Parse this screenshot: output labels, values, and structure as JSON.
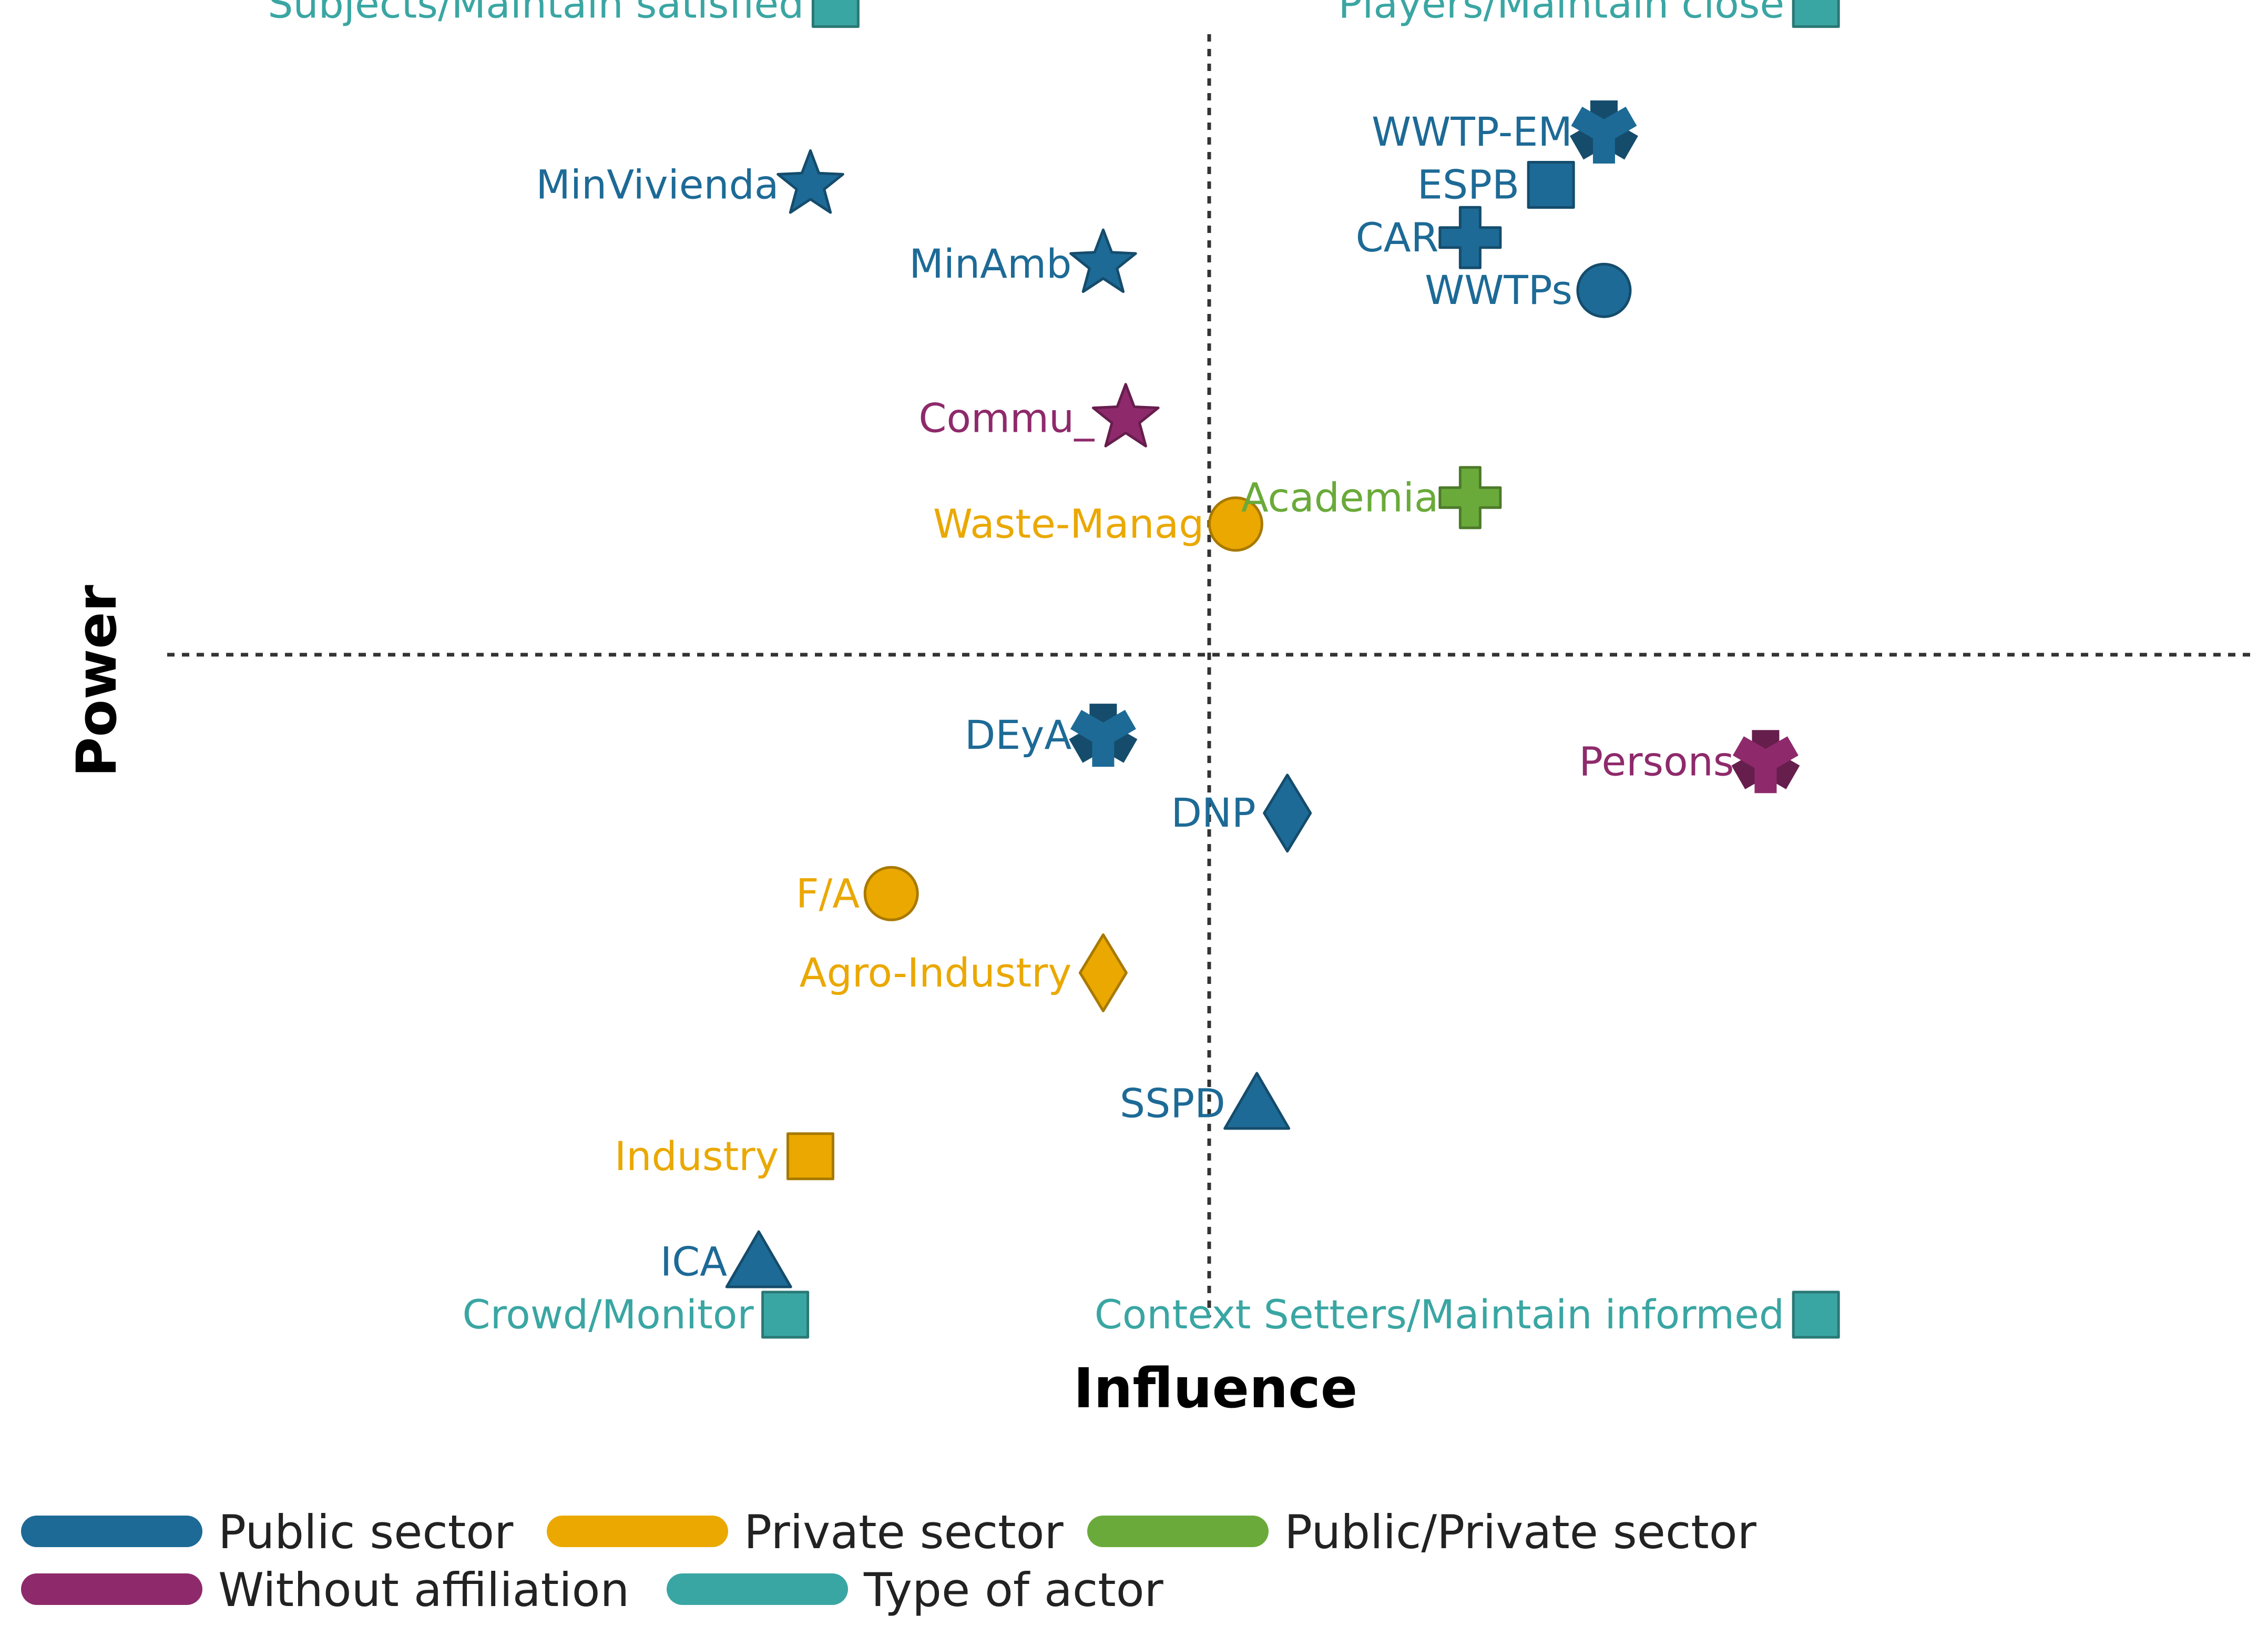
{
  "colors": {
    "public": "#1d6a96",
    "private": "#eaa800",
    "public_private": "#6aaa3a",
    "without": "#8e2a6b",
    "type": "#3aa6a3"
  },
  "chart_data": {
    "type": "scatter",
    "title": "",
    "xlabel": "Influence",
    "ylabel": "Power",
    "xlim": [
      0,
      1
    ],
    "ylim": [
      0,
      1
    ],
    "divider": {
      "x": 0.5,
      "y": 0.5
    },
    "grid": false,
    "legend_position": "bottom-left",
    "legend": [
      {
        "label": "Public sector",
        "color": "#1d6a96"
      },
      {
        "label": "Private sector",
        "color": "#eaa800"
      },
      {
        "label": "Public/Private sector",
        "color": "#6aaa3a"
      },
      {
        "label": "Without affiliation",
        "color": "#8e2a6b"
      },
      {
        "label": "Type of actor",
        "color": "#3aa6a3"
      }
    ],
    "series": [
      {
        "name": "Public sector",
        "color": "#1d6a96",
        "points": [
          {
            "label": "MinVivienda",
            "x": 0.199,
            "y": 0.856,
            "marker": "star"
          },
          {
            "label": "MinAmb",
            "x": 0.42,
            "y": 0.796,
            "marker": "star"
          },
          {
            "label": "WWTP-EM",
            "x": 0.798,
            "y": 0.896,
            "marker": "tri"
          },
          {
            "label": "ESPB",
            "x": 0.758,
            "y": 0.856,
            "marker": "square"
          },
          {
            "label": "CAR",
            "x": 0.697,
            "y": 0.816,
            "marker": "plus"
          },
          {
            "label": "WWTPs",
            "x": 0.798,
            "y": 0.776,
            "marker": "circle"
          },
          {
            "label": "DEyA",
            "x": 0.42,
            "y": 0.439,
            "marker": "tri"
          },
          {
            "label": "DNP",
            "x": 0.559,
            "y": 0.38,
            "marker": "diamond"
          },
          {
            "label": "SSPD",
            "x": 0.536,
            "y": 0.16,
            "marker": "triangle"
          },
          {
            "label": "ICA",
            "x": 0.16,
            "y": 0.04,
            "marker": "triangle"
          }
        ]
      },
      {
        "name": "Private sector",
        "color": "#eaa800",
        "points": [
          {
            "label": "Waste-Manag",
            "x": 0.52,
            "y": 0.599,
            "marker": "circle"
          },
          {
            "label": "F/A",
            "x": 0.26,
            "y": 0.319,
            "marker": "circle"
          },
          {
            "label": "Agro-Industry",
            "x": 0.42,
            "y": 0.259,
            "marker": "diamond"
          },
          {
            "label": "Industry",
            "x": 0.199,
            "y": 0.12,
            "marker": "square"
          }
        ]
      },
      {
        "name": "Public/Private sector",
        "color": "#6aaa3a",
        "points": [
          {
            "label": "Academia",
            "x": 0.697,
            "y": 0.619,
            "marker": "plus"
          }
        ]
      },
      {
        "name": "Without affiliation",
        "color": "#8e2a6b",
        "points": [
          {
            "label": "Commu_",
            "x": 0.437,
            "y": 0.679,
            "marker": "star"
          },
          {
            "label": "Persons",
            "x": 0.92,
            "y": 0.419,
            "marker": "tri"
          }
        ]
      },
      {
        "name": "Type of actor",
        "color": "#3aa6a3",
        "points": [
          {
            "label": "Subjects/Maintain satisfied",
            "x": 0.218,
            "y": 0.993,
            "marker": "square"
          },
          {
            "label": "Players/Maintain close",
            "x": 0.958,
            "y": 0.993,
            "marker": "square"
          },
          {
            "label": "Crowd/Monitor",
            "x": 0.18,
            "y": 0.0,
            "marker": "square"
          },
          {
            "label": "Context Setters/Maintain informed",
            "x": 0.958,
            "y": 0.0,
            "marker": "square"
          }
        ]
      }
    ]
  }
}
